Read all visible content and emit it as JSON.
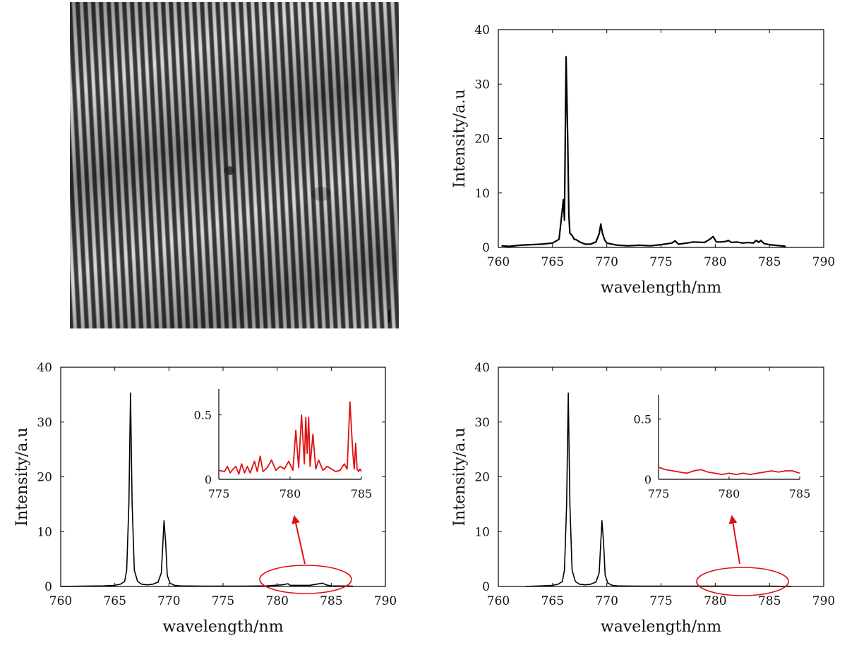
{
  "image_panel": {
    "description_name": "interference fringe pattern"
  },
  "colors": {
    "main_line": "#000000",
    "inset_line": "#e01010",
    "annotation": "#e01010"
  },
  "chart_data": [
    {
      "type": "line",
      "title": "",
      "xlabel": "wavelength/nm",
      "ylabel": "Intensity/a.u",
      "xlim": [
        760,
        790
      ],
      "ylim": [
        0,
        40
      ],
      "xticks": [
        760,
        765,
        770,
        775,
        780,
        785,
        790
      ],
      "yticks": [
        0,
        10,
        20,
        30,
        40
      ],
      "series": [
        {
          "name": "spectrum",
          "x": [
            760.3,
            761,
            762,
            763,
            764,
            765,
            765.6,
            766,
            766.1,
            766.25,
            766.4,
            766.5,
            766.6,
            766.8,
            767,
            767.2,
            767.5,
            768,
            768.5,
            769,
            769.3,
            769.45,
            769.6,
            769.8,
            770,
            770.5,
            771,
            772,
            773,
            774,
            775,
            776,
            776.3,
            776.6,
            777,
            778,
            779,
            779.5,
            779.8,
            780.1,
            780.5,
            781,
            781.2,
            781.5,
            782,
            782.5,
            783,
            783.5,
            783.8,
            784,
            784.2,
            784.5,
            785,
            785.5,
            786,
            786.5
          ],
          "values": [
            0.3,
            0.2,
            0.4,
            0.5,
            0.6,
            0.8,
            1.5,
            8.8,
            5,
            35,
            20,
            6,
            2.6,
            2.2,
            1.5,
            1.4,
            1,
            0.6,
            0.6,
            1,
            2.5,
            4.3,
            2.6,
            1.4,
            0.8,
            0.6,
            0.4,
            0.3,
            0.4,
            0.3,
            0.5,
            0.8,
            1.2,
            0.6,
            0.7,
            1.0,
            0.9,
            1.5,
            2.0,
            1.0,
            1.0,
            1.1,
            1.3,
            0.9,
            1.0,
            0.8,
            0.9,
            0.8,
            1.3,
            0.9,
            1.3,
            0.7,
            0.5,
            0.4,
            0.3,
            0.2
          ]
        }
      ]
    },
    {
      "type": "line",
      "title": "",
      "xlabel": "wavelength/nm",
      "ylabel": "Intensity/a.u",
      "xlim": [
        760,
        790
      ],
      "ylim": [
        0,
        40
      ],
      "xticks": [
        760,
        765,
        770,
        775,
        780,
        785,
        790
      ],
      "yticks": [
        0,
        10,
        20,
        30,
        40
      ],
      "series": [
        {
          "name": "spectrum",
          "x": [
            760,
            762,
            764,
            765,
            765.5,
            765.9,
            766.1,
            766.3,
            766.45,
            766.6,
            766.8,
            767.1,
            767.5,
            768,
            768.5,
            769,
            769.3,
            769.55,
            769.7,
            769.85,
            770.1,
            770.5,
            771,
            773,
            775,
            777,
            779,
            780.5,
            781,
            781.2,
            783,
            784.2,
            784.5,
            785,
            787
          ],
          "values": [
            0,
            0.05,
            0.1,
            0.2,
            0.4,
            0.9,
            3,
            15,
            35.3,
            15,
            3,
            0.9,
            0.4,
            0.3,
            0.4,
            0.8,
            2.5,
            12,
            8,
            2,
            0.6,
            0.2,
            0.1,
            0.05,
            0.05,
            0.05,
            0.1,
            0.3,
            0.5,
            0.2,
            0.2,
            0.6,
            0.3,
            0.1,
            0.05
          ]
        }
      ],
      "inset": {
        "xlim": [
          775,
          785
        ],
        "ylim": [
          0,
          0.7
        ],
        "xticks": [
          775,
          780,
          785
        ],
        "yticks": [
          0,
          0.5
        ],
        "ytick_labels": [
          "0",
          "0.5"
        ],
        "x": [
          775,
          775.4,
          775.6,
          775.8,
          776,
          776.2,
          776.4,
          776.6,
          776.8,
          777,
          777.2,
          777.5,
          777.7,
          777.9,
          778.1,
          778.4,
          778.7,
          779,
          779.3,
          779.6,
          779.9,
          780.2,
          780.4,
          780.6,
          780.8,
          781,
          781.1,
          781.2,
          781.3,
          781.4,
          781.6,
          781.8,
          782,
          782.3,
          782.6,
          782.9,
          783.2,
          783.5,
          783.8,
          784,
          784.2,
          784.4,
          784.5,
          784.6,
          784.7,
          784.8,
          784.9,
          785
        ],
        "values": [
          0.07,
          0.06,
          0.1,
          0.05,
          0.08,
          0.1,
          0.04,
          0.12,
          0.05,
          0.1,
          0.05,
          0.14,
          0.06,
          0.18,
          0.06,
          0.09,
          0.15,
          0.07,
          0.1,
          0.08,
          0.14,
          0.07,
          0.38,
          0.09,
          0.5,
          0.12,
          0.48,
          0.2,
          0.48,
          0.1,
          0.35,
          0.08,
          0.15,
          0.07,
          0.1,
          0.08,
          0.06,
          0.07,
          0.12,
          0.08,
          0.6,
          0.2,
          0.08,
          0.28,
          0.08,
          0.06,
          0.08,
          0.06
        ]
      },
      "annotation": "ellipse around 778.5–786 nm with arrow pointing to inset"
    },
    {
      "type": "line",
      "title": "",
      "xlabel": "wavelength/nm",
      "ylabel": "Intensity/a.u",
      "xlim": [
        760,
        790
      ],
      "ylim": [
        0,
        40
      ],
      "xticks": [
        760,
        765,
        770,
        775,
        780,
        785,
        790
      ],
      "yticks": [
        0,
        10,
        20,
        30,
        40
      ],
      "series": [
        {
          "name": "spectrum",
          "x": [
            762.5,
            764,
            765,
            765.5,
            765.9,
            766.1,
            766.3,
            766.45,
            766.6,
            766.8,
            767.1,
            767.5,
            768,
            768.5,
            769,
            769.3,
            769.55,
            769.7,
            769.85,
            770.1,
            770.5,
            771,
            773,
            775,
            777,
            779,
            781,
            783,
            785,
            787
          ],
          "values": [
            0,
            0.1,
            0.2,
            0.4,
            0.9,
            3,
            15,
            35.3,
            15,
            3,
            0.9,
            0.4,
            0.3,
            0.4,
            0.8,
            2.5,
            12,
            8,
            2,
            0.6,
            0.2,
            0.1,
            0.05,
            0.05,
            0.05,
            0.05,
            0.05,
            0.05,
            0.05,
            0
          ]
        }
      ],
      "inset": {
        "xlim": [
          775,
          785
        ],
        "ylim": [
          0,
          0.7
        ],
        "xticks": [
          775,
          780,
          785
        ],
        "yticks": [
          0,
          0.5
        ],
        "ytick_labels": [
          "0",
          "0.5"
        ],
        "x": [
          775,
          775.5,
          776,
          776.5,
          777,
          777.5,
          778,
          778.5,
          779,
          779.5,
          780,
          780.5,
          781,
          781.5,
          782,
          782.5,
          783,
          783.5,
          784,
          784.5,
          785
        ],
        "values": [
          0.1,
          0.08,
          0.07,
          0.06,
          0.05,
          0.07,
          0.08,
          0.06,
          0.05,
          0.04,
          0.05,
          0.04,
          0.05,
          0.04,
          0.05,
          0.06,
          0.07,
          0.06,
          0.07,
          0.07,
          0.05
        ]
      },
      "annotation": "ellipse around 778.5–786 nm with arrow pointing to inset"
    }
  ]
}
